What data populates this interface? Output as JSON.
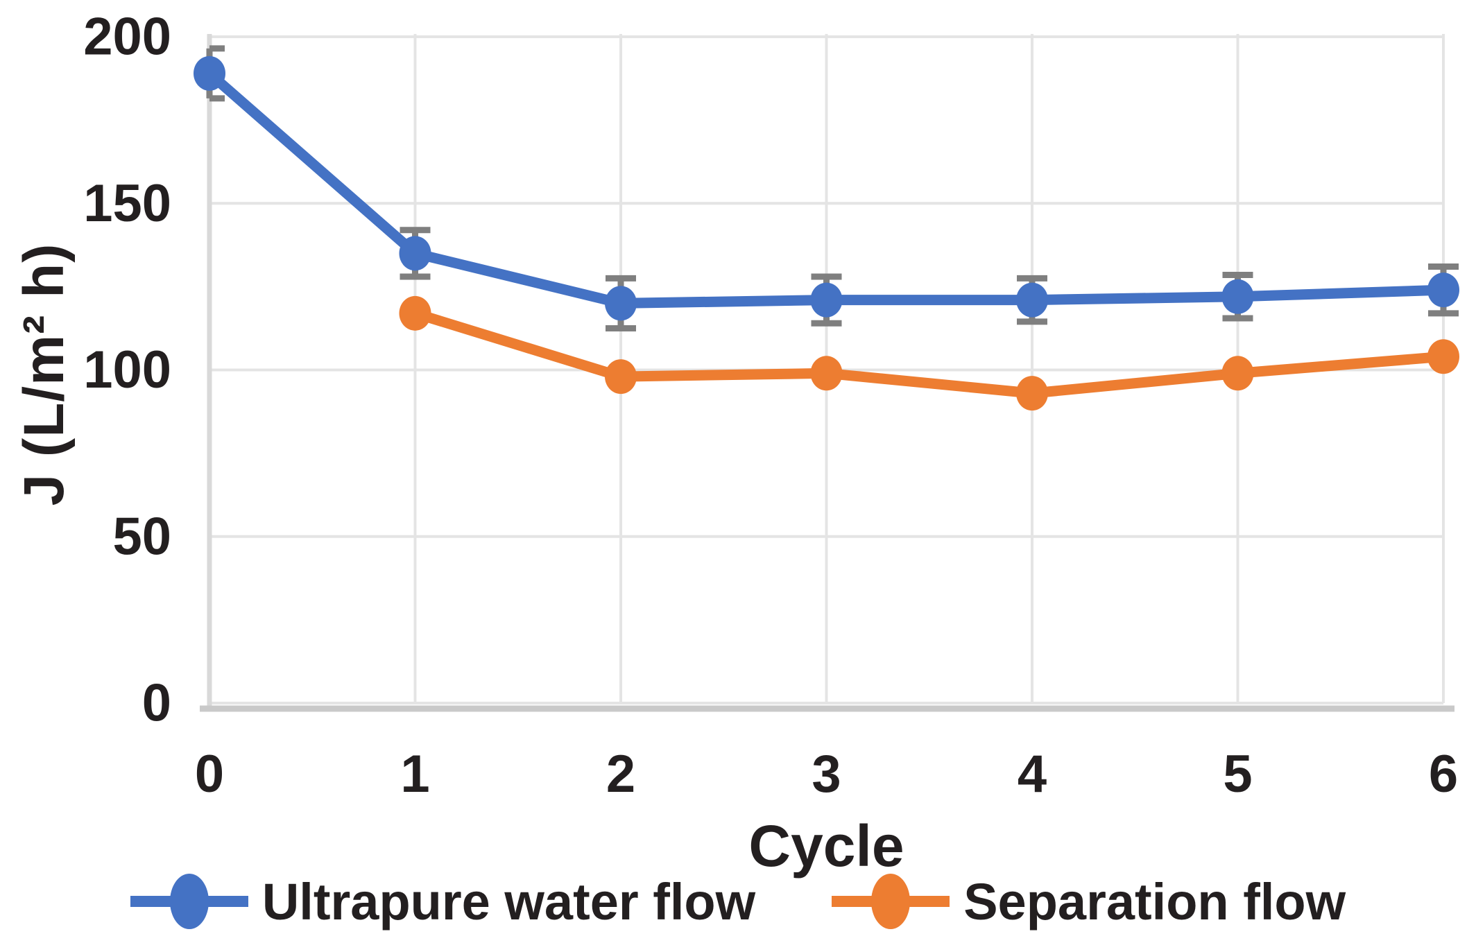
{
  "figure": {
    "background": "#FFFFFF"
  },
  "chart_data": {
    "type": "line",
    "title": "",
    "xlabel": "Cycle",
    "ylabel": "J (L/m² h)",
    "xlim": [
      0,
      6
    ],
    "ylim": [
      0,
      200
    ],
    "xticks": [
      0,
      1,
      2,
      3,
      4,
      5,
      6
    ],
    "yticks": [
      0,
      50,
      100,
      150,
      200
    ],
    "grid": true,
    "legend_position": "bottom",
    "series": [
      {
        "name": "Ultrapure water flow",
        "color": "#4472C4",
        "marker": "circle",
        "x": [
          0,
          1,
          2,
          3,
          4,
          5,
          6
        ],
        "values": [
          189,
          135,
          120,
          121,
          121,
          122,
          124
        ],
        "yerr": [
          7.5,
          7,
          7.5,
          7,
          6.5,
          6.5,
          7
        ]
      },
      {
        "name": "Separation flow",
        "color": "#ED7D31",
        "marker": "circle",
        "x": [
          1,
          2,
          3,
          4,
          5,
          6
        ],
        "values": [
          117,
          98,
          99,
          93,
          99,
          104
        ],
        "yerr": null
      }
    ],
    "style": {
      "error_bar_color": "#7F7F7F",
      "gridline_color": "#E4E4E4",
      "left_axis_color": "#D9D9D9",
      "bottom_axis_color": "#C9C9C9",
      "text_color": "#231F20"
    }
  }
}
